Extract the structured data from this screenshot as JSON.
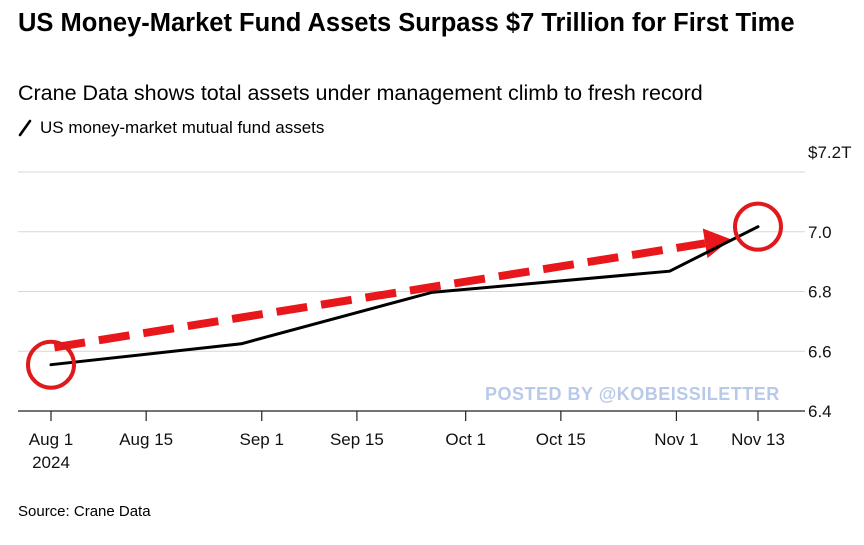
{
  "chart_data": {
    "type": "line",
    "title": "US Money-Market Fund Assets Surpass $7 Trillion for First Time",
    "subtitle": "Crane Data shows total assets under management climb to fresh record",
    "legend": [
      "US money-market mutual fund assets"
    ],
    "source": "Source: Crane Data",
    "watermark": "POSTED BY @KOBEISSILETTER",
    "xlabel": "",
    "ylabel": "",
    "x_tick_labels": [
      "Aug 1",
      "Aug 15",
      "Sep 1",
      "Sep 15",
      "Oct 1",
      "Oct 15",
      "Nov 1",
      "Nov 13"
    ],
    "x_tick_sublabel": "2024",
    "x_tick_days": [
      0,
      14,
      31,
      45,
      61,
      75,
      92,
      104
    ],
    "y_ticks": [
      6.4,
      6.6,
      6.8,
      7.0,
      7.2
    ],
    "y_tick_labels": [
      "6.4",
      "6.6",
      "6.8",
      "7.0",
      "$7.2T"
    ],
    "ylim": [
      6.4,
      7.2
    ],
    "xlim_days": [
      0,
      104
    ],
    "series": [
      {
        "name": "US money-market mutual fund assets",
        "color": "#000000",
        "x_days": [
          0,
          28,
          56,
          91,
          104
        ],
        "x_labels": [
          "Aug 1",
          "Aug 29",
          "Sep 26",
          "Oct 31",
          "Nov 13"
        ],
        "values": [
          6.555,
          6.625,
          6.797,
          6.868,
          7.017
        ]
      }
    ],
    "annotations": {
      "circles": [
        {
          "x_day": 0,
          "y": 6.555,
          "color": "#e0191c"
        },
        {
          "x_day": 104,
          "y": 7.017,
          "color": "#e0191c"
        }
      ],
      "trend_arrow": {
        "from": {
          "x_day": 0.5,
          "y": 6.613
        },
        "to": {
          "x_day": 100,
          "y": 6.975
        },
        "color": "#e8171c"
      }
    },
    "grid": true
  }
}
